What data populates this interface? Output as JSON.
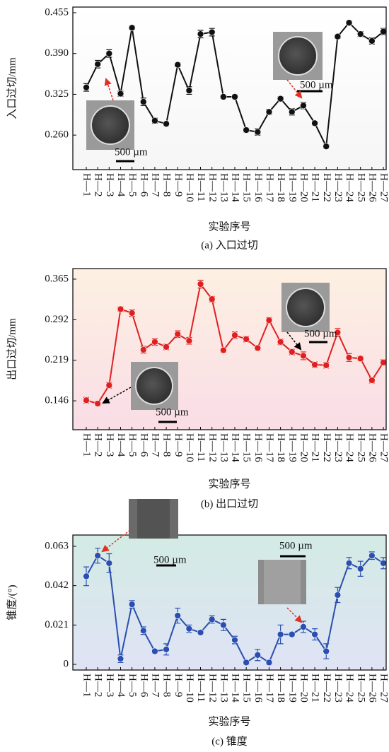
{
  "chart_data": [
    {
      "type": "line",
      "ylabel": "入口过切/mm",
      "xlabel": "实验序号",
      "caption": "(a) 入口过切",
      "categories": [
        "H—1",
        "H—2",
        "H—3",
        "H—4",
        "H—5",
        "H—6",
        "H—7",
        "H—8",
        "H—9",
        "H—10",
        "H—11",
        "H—12",
        "H—13",
        "H—14",
        "H—15",
        "H—16",
        "H—17",
        "H—18",
        "H—19",
        "H—20",
        "H—21",
        "H—22",
        "H—23",
        "H—24",
        "H—25",
        "H—26",
        "H—27"
      ],
      "values": [
        0.336,
        0.373,
        0.39,
        0.326,
        0.431,
        0.313,
        0.283,
        0.278,
        0.372,
        0.331,
        0.421,
        0.424,
        0.321,
        0.321,
        0.268,
        0.265,
        0.297,
        0.318,
        0.297,
        0.307,
        0.279,
        0.242,
        0.417,
        0.439,
        0.421,
        0.41,
        0.425
      ],
      "errors": [
        0.006,
        0.006,
        0.006,
        0.004,
        0.003,
        0.006,
        0.004,
        0.003,
        0.003,
        0.006,
        0.006,
        0.006,
        0.003,
        0.003,
        0.003,
        0.005,
        0.004,
        0.003,
        0.005,
        0.005,
        0.003,
        0.003,
        0.003,
        0.003,
        0.004,
        0.005,
        0.005
      ],
      "color": "#111111",
      "ylim": [
        0.205,
        0.464
      ],
      "yticks": [
        {
          "value": 0.26,
          "label": "0.260"
        },
        0.325,
        {
          "value": 0.39,
          "label": "0.390"
        },
        0.455
      ],
      "annotations": [
        "500 µm",
        "500 µm"
      ]
    },
    {
      "type": "line",
      "ylabel": "出口过切/mm",
      "xlabel": "实验序号",
      "caption": "(b) 出口过切",
      "categories": [
        "H—1",
        "H—2",
        "H—3",
        "H—4",
        "H—5",
        "H—6",
        "H—7",
        "H—8",
        "H—9",
        "H—10",
        "H—11",
        "H—12",
        "H—13",
        "H—14",
        "H—15",
        "H—16",
        "H—17",
        "H—18",
        "H—19",
        "H—20",
        "H—21",
        "H—22",
        "H—23",
        "H—24",
        "H—25",
        "H—26",
        "H—27"
      ],
      "values": [
        0.147,
        0.141,
        0.174,
        0.311,
        0.304,
        0.238,
        0.252,
        0.243,
        0.266,
        0.254,
        0.356,
        0.329,
        0.237,
        0.264,
        0.257,
        0.241,
        0.291,
        0.252,
        0.234,
        0.227,
        0.211,
        0.21,
        0.269,
        0.224,
        0.222,
        0.183,
        0.215
      ],
      "errors": [
        0.005,
        0.004,
        0.005,
        0.004,
        0.006,
        0.006,
        0.006,
        0.005,
        0.006,
        0.006,
        0.007,
        0.005,
        0.004,
        0.006,
        0.005,
        0.004,
        0.005,
        0.005,
        0.005,
        0.007,
        0.005,
        0.005,
        0.007,
        0.007,
        0.004,
        0.005,
        0.005
      ],
      "color": "#e02020",
      "ylim": [
        0.094,
        0.384
      ],
      "yticks": [
        0.146,
        0.219,
        0.292,
        0.365
      ],
      "annotations": [
        "500 µm",
        "500 µm"
      ]
    },
    {
      "type": "line",
      "ylabel": "锥度/(°)",
      "xlabel": "实验序号",
      "caption": "(c) 锥度",
      "categories": [
        "H—1",
        "H—2",
        "H—3",
        "H—4",
        "H—5",
        "H—6",
        "H—7",
        "H—8",
        "H—9",
        "H—10",
        "H—11",
        "H—12",
        "H—13",
        "H—14",
        "H—15",
        "H—16",
        "H—17",
        "H—18",
        "H—19",
        "H—20",
        "H—21",
        "H—22",
        "H—23",
        "H—24",
        "H—25",
        "H—26",
        "H—27"
      ],
      "values": [
        0.047,
        0.058,
        0.054,
        0.003,
        0.032,
        0.018,
        0.007,
        0.008,
        0.026,
        0.019,
        0.017,
        0.024,
        0.021,
        0.013,
        0.001,
        0.005,
        0.001,
        0.016,
        0.016,
        0.02,
        0.016,
        0.007,
        0.037,
        0.054,
        0.051,
        0.058,
        0.054
      ],
      "errors": [
        0.005,
        0.004,
        0.005,
        0.002,
        0.002,
        0.002,
        0.001,
        0.003,
        0.004,
        0.002,
        0.001,
        0.002,
        0.003,
        0.002,
        0.001,
        0.003,
        0.001,
        0.005,
        0.001,
        0.003,
        0.003,
        0.004,
        0.004,
        0.003,
        0.004,
        0.002,
        0.003
      ],
      "color": "#2a4fb0",
      "ylim": [
        -0.003,
        0.069
      ],
      "yticks": [
        0,
        0.021,
        0.042,
        0.063
      ],
      "annotations": [
        "500 µm",
        "500 µm"
      ]
    }
  ]
}
